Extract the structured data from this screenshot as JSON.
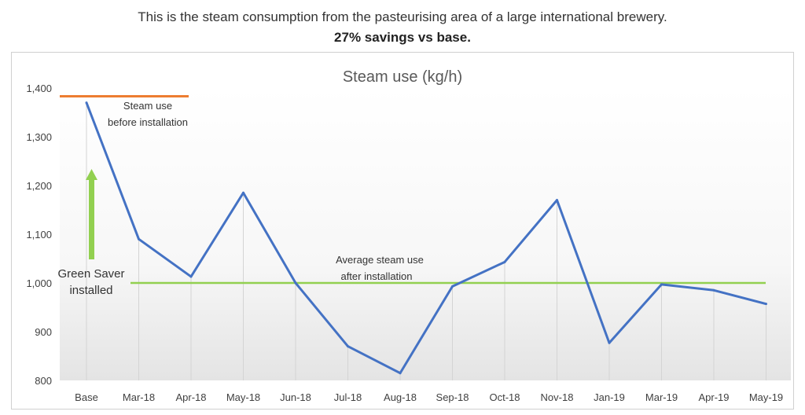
{
  "header": {
    "line1": "This is the steam consumption from the pasteurising area of a large international brewery.",
    "line2": "27% savings vs base."
  },
  "chart_data": {
    "type": "line",
    "title": "Steam use (kg/h)",
    "xlabel": "",
    "ylabel": "",
    "categories": [
      "Base",
      "Mar-18",
      "Apr-18",
      "May-18",
      "Jun-18",
      "Jul-18",
      "Aug-18",
      "Sep-18",
      "Oct-18",
      "Nov-18",
      "Jan-19",
      "Mar-19",
      "Apr-19",
      "May-19"
    ],
    "series": [
      {
        "values": [
          1370,
          1090,
          1013,
          1185,
          1000,
          870,
          815,
          993,
          1043,
          1170,
          877,
          997,
          985,
          957
        ],
        "color": "#4472c4"
      }
    ],
    "ylim": [
      800,
      1400
    ],
    "yticks": [
      800,
      900,
      1000,
      1100,
      1200,
      1300,
      1400
    ],
    "ytick_labels": [
      "800",
      "900",
      "1,000",
      "1,100",
      "1,200",
      "1,300",
      "1,400"
    ],
    "grid": "vertical drop lines per category",
    "reference_lines": [
      {
        "label_line1": "Steam use",
        "label_line2": "before installation",
        "value": 1383,
        "from_category": 0,
        "color": "#ed7d31"
      },
      {
        "label_line1": "Average steam use",
        "label_line2": "after installation",
        "value": 1000,
        "from_category": 1,
        "color": "#92d050"
      }
    ],
    "annotation": {
      "label_line1": "Green Saver",
      "label_line2": "installed",
      "arrow_color": "#92d050"
    }
  }
}
